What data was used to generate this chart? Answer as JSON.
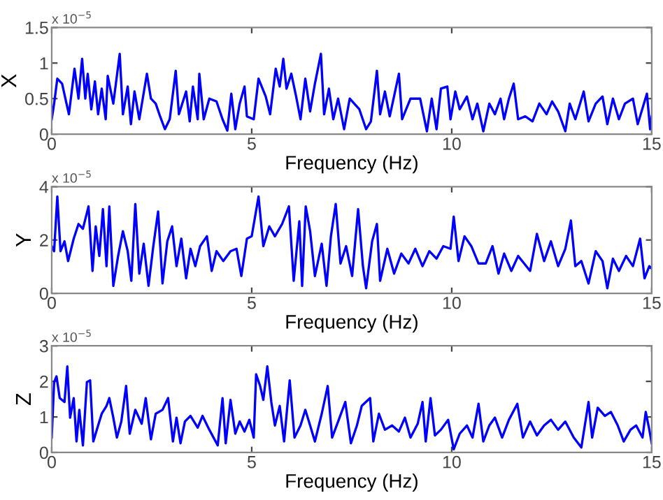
{
  "chart_data": [
    {
      "type": "line",
      "ylabel": "X",
      "xlabel": "Frequency (Hz)",
      "annotations": [
        "x 10$^{−5}$"
      ],
      "xlim": [
        0,
        15
      ],
      "xticks": [
        0,
        5,
        10,
        15
      ],
      "ylim": [
        0,
        1.5
      ],
      "yticks": [
        0,
        0.5,
        1,
        1.5
      ],
      "grid": false,
      "legend": false,
      "marker": "none",
      "line_style": "solid",
      "series": [
        {
          "color": "#0000ff",
          "x": [
            0,
            0.06,
            0.14,
            0.26,
            0.37,
            0.43,
            0.57,
            0.67,
            0.76,
            0.84,
            0.9,
            0.99,
            1.08,
            1.16,
            1.25,
            1.35,
            1.4,
            1.54,
            1.7,
            1.78,
            1.9,
            1.98,
            2.07,
            2.19,
            2.38,
            2.48,
            2.6,
            2.71,
            2.83,
            2.95,
            3.1,
            3.18,
            3.36,
            3.45,
            3.53,
            3.65,
            3.69,
            3.8,
            3.94,
            4.12,
            4.27,
            4.39,
            4.49,
            4.59,
            4.7,
            4.82,
            4.88,
            5.05,
            5.17,
            5.35,
            5.46,
            5.6,
            5.7,
            5.79,
            5.87,
            5.99,
            6.11,
            6.22,
            6.34,
            6.46,
            6.58,
            6.73,
            6.81,
            6.93,
            7.04,
            7.16,
            7.31,
            7.45,
            7.69,
            7.86,
            7.98,
            8.13,
            8.21,
            8.33,
            8.45,
            8.6,
            8.68,
            8.76,
            8.97,
            9.21,
            9.38,
            9.5,
            9.62,
            9.73,
            9.89,
            9.97,
            10.09,
            10.2,
            10.38,
            10.52,
            10.64,
            10.79,
            10.94,
            11.08,
            11.22,
            11.31,
            11.43,
            11.55,
            11.66,
            11.84,
            12.02,
            12.19,
            12.37,
            12.51,
            12.66,
            12.84,
            12.95,
            13.09,
            13.3,
            13.42,
            13.6,
            13.77,
            13.89,
            14.03,
            14.18,
            14.33,
            14.53,
            14.65,
            14.88,
            14.96,
            15
          ],
          "values": [
            0.21,
            0.43,
            0.78,
            0.71,
            0.43,
            0.28,
            0.92,
            0.5,
            1.06,
            0.5,
            0.85,
            0.35,
            0.74,
            0.28,
            0.64,
            0.21,
            0.82,
            0.43,
            1.13,
            0.28,
            0.67,
            0.14,
            0.6,
            0.21,
            0.85,
            0.5,
            0.43,
            0.25,
            0.07,
            0.21,
            0.89,
            0.28,
            0.6,
            0.18,
            0.67,
            0.21,
            0.85,
            0.21,
            0.5,
            0.46,
            0.21,
            0.05,
            0.57,
            0.07,
            0.43,
            0.67,
            0.25,
            0.21,
            0.78,
            0.53,
            0.28,
            0.92,
            0.67,
            1.06,
            0.64,
            0.85,
            0.53,
            0.21,
            0.78,
            0.32,
            0.71,
            1.13,
            0.28,
            0.64,
            0.21,
            0.5,
            0.07,
            0.5,
            0.35,
            0.07,
            0.18,
            0.89,
            0.28,
            0.6,
            0.25,
            0.64,
            0.85,
            0.21,
            0.5,
            0.5,
            0.04,
            0.5,
            0.07,
            0.64,
            0.67,
            0.21,
            0.6,
            0.35,
            0.53,
            0.21,
            0.43,
            0.04,
            0.43,
            0.28,
            0.5,
            0.21,
            0.5,
            0.71,
            0.21,
            0.25,
            0.18,
            0.43,
            0.28,
            0.46,
            0.32,
            0.04,
            0.43,
            0.21,
            0.6,
            0.18,
            0.43,
            0.53,
            0.14,
            0.5,
            0.21,
            0.43,
            0.5,
            0.14,
            0.57,
            0.07,
            0.25
          ]
        }
      ]
    },
    {
      "type": "line",
      "ylabel": "Y",
      "xlabel": "Frequency (Hz)",
      "annotations": [
        "x 10$^{−5}$"
      ],
      "xlim": [
        0,
        15
      ],
      "xticks": [
        0,
        5,
        10,
        15
      ],
      "ylim": [
        0,
        4
      ],
      "yticks": [
        0,
        2,
        4
      ],
      "grid": false,
      "legend": false,
      "marker": "none",
      "line_style": "solid",
      "series": [
        {
          "color": "#0000ff",
          "x": [
            0,
            0.06,
            0.14,
            0.22,
            0.32,
            0.41,
            0.55,
            0.67,
            0.78,
            0.92,
            1.02,
            1.1,
            1.19,
            1.28,
            1.37,
            1.44,
            1.54,
            1.66,
            1.78,
            1.9,
            1.99,
            2.09,
            2.19,
            2.3,
            2.42,
            2.54,
            2.66,
            2.77,
            2.89,
            3.01,
            3.12,
            3.24,
            3.36,
            3.47,
            3.59,
            3.71,
            3.88,
            4.0,
            4.12,
            4.29,
            4.47,
            4.62,
            4.74,
            4.88,
            5.0,
            5.17,
            5.29,
            5.44,
            5.58,
            5.76,
            5.93,
            6.05,
            6.19,
            6.26,
            6.35,
            6.46,
            6.58,
            6.75,
            6.87,
            6.98,
            7.1,
            7.22,
            7.36,
            7.51,
            7.66,
            7.78,
            7.86,
            8.01,
            8.13,
            8.21,
            8.39,
            8.56,
            8.74,
            8.92,
            9.09,
            9.27,
            9.44,
            9.62,
            9.79,
            9.97,
            10.05,
            10.17,
            10.32,
            10.49,
            10.67,
            10.85,
            11.02,
            11.17,
            11.31,
            11.49,
            11.66,
            11.81,
            11.96,
            12.13,
            12.31,
            12.48,
            12.66,
            12.84,
            12.98,
            13.09,
            13.24,
            13.42,
            13.6,
            13.77,
            13.89,
            14.03,
            14.18,
            14.36,
            14.53,
            14.71,
            14.82,
            14.94,
            15
          ],
          "values": [
            1.77,
            1.58,
            3.63,
            1.58,
            1.95,
            1.21,
            2.05,
            2.6,
            2.42,
            3.26,
            0.84,
            2.51,
            1.4,
            3.16,
            1.02,
            3.26,
            0.28,
            1.4,
            2.33,
            1.58,
            0.47,
            3.35,
            0.74,
            1.86,
            0.28,
            1.77,
            3.07,
            0.37,
            1.95,
            2.51,
            1.02,
            2.05,
            0.56,
            1.67,
            1.02,
            1.77,
            2.14,
            0.84,
            1.58,
            1.21,
            1.58,
            1.67,
            0.65,
            2.05,
            2.14,
            3.63,
            1.77,
            2.51,
            2.14,
            2.6,
            3.26,
            0.47,
            2.7,
            0.28,
            3.26,
            2.33,
            0.65,
            1.86,
            0.28,
            2.14,
            3.35,
            1.12,
            1.77,
            0.65,
            3.16,
            1.02,
            0.19,
            1.95,
            2.6,
            0.47,
            1.67,
            0.74,
            1.49,
            1.12,
            1.67,
            1.02,
            1.58,
            1.3,
            1.77,
            1.67,
            2.88,
            1.21,
            2.14,
            1.77,
            1.12,
            1.12,
            1.77,
            0.74,
            1.49,
            0.84,
            1.4,
            1.12,
            0.84,
            2.23,
            1.21,
            1.95,
            1.02,
            1.67,
            2.73,
            1.02,
            1.21,
            0.37,
            1.58,
            1.21,
            0.19,
            1.3,
            0.84,
            1.4,
            1.02,
            2.05,
            0.56,
            1.02,
            0.93
          ]
        }
      ]
    },
    {
      "type": "line",
      "ylabel": "Z",
      "xlabel": "Frequency (Hz)",
      "annotations": [
        "x 10$^{−5}$"
      ],
      "xlim": [
        0,
        15
      ],
      "xticks": [
        0,
        5,
        10,
        15
      ],
      "ylim": [
        0,
        3
      ],
      "yticks": [
        0,
        1,
        2,
        3
      ],
      "grid": false,
      "legend": false,
      "marker": "none",
      "line_style": "solid",
      "series": [
        {
          "color": "#0000ff",
          "x": [
            0,
            0.06,
            0.12,
            0.2,
            0.32,
            0.39,
            0.46,
            0.55,
            0.62,
            0.69,
            0.78,
            0.88,
            0.96,
            1.04,
            1.16,
            1.25,
            1.37,
            1.44,
            1.54,
            1.63,
            1.74,
            1.86,
            1.95,
            2.09,
            2.25,
            2.35,
            2.48,
            2.6,
            2.77,
            2.91,
            3.03,
            3.12,
            3.22,
            3.33,
            3.47,
            3.65,
            3.77,
            3.94,
            4.15,
            4.27,
            4.35,
            4.47,
            4.59,
            4.7,
            4.82,
            4.94,
            5.05,
            5.11,
            5.21,
            5.29,
            5.39,
            5.49,
            5.58,
            5.7,
            5.81,
            5.95,
            6.07,
            6.22,
            6.34,
            6.46,
            6.58,
            6.75,
            6.9,
            7.01,
            7.16,
            7.34,
            7.48,
            7.63,
            7.75,
            7.96,
            8.04,
            8.18,
            8.33,
            8.51,
            8.68,
            8.83,
            8.97,
            9.15,
            9.27,
            9.35,
            9.47,
            9.58,
            9.73,
            9.91,
            10.05,
            10.2,
            10.38,
            10.52,
            10.67,
            10.79,
            10.94,
            11.08,
            11.26,
            11.43,
            11.64,
            11.78,
            11.96,
            12.13,
            12.31,
            12.48,
            12.66,
            12.84,
            13.05,
            13.24,
            13.42,
            13.51,
            13.65,
            13.83,
            13.98,
            14.15,
            14.3,
            14.47,
            14.61,
            14.77,
            14.85,
            14.94,
            15
          ],
          "values": [
            0.42,
            1.98,
            2.14,
            1.53,
            1.42,
            2.42,
            0.98,
            1.53,
            0.31,
            1.2,
            0.2,
            1.98,
            2.03,
            0.31,
            0.76,
            1.09,
            1.31,
            1.53,
            0.98,
            0.42,
            0.87,
            1.87,
            0.53,
            1.2,
            0.81,
            1.53,
            0.37,
            1.09,
            1.2,
            1.53,
            0.31,
            0.98,
            0.26,
            0.87,
            1.03,
            0.7,
            1.03,
            0.64,
            0.2,
            1.53,
            0.26,
            1.48,
            0.53,
            0.87,
            0.59,
            0.92,
            0.42,
            2.2,
            1.87,
            1.48,
            2.42,
            1.42,
            0.76,
            1.31,
            0.31,
            2.03,
            0.42,
            0.76,
            1.2,
            0.76,
            0.31,
            1.09,
            1.87,
            0.42,
            0.87,
            1.42,
            0.26,
            0.76,
            1.31,
            1.53,
            0.31,
            1.09,
            0.64,
            0.76,
            0.59,
            0.98,
            0.42,
            0.81,
            1.42,
            0.31,
            1.53,
            0.48,
            0.64,
            0.92,
            0.09,
            0.53,
            0.76,
            0.42,
            1.37,
            0.31,
            0.76,
            0.98,
            0.42,
            0.92,
            1.37,
            0.42,
            0.87,
            0.48,
            0.76,
            0.92,
            0.64,
            0.87,
            0.42,
            0.14,
            1.42,
            0.42,
            1.26,
            1.03,
            1.14,
            0.76,
            0.31,
            0.64,
            0.76,
            0.42,
            1.14,
            0.64,
            0.26
          ]
        }
      ]
    }
  ]
}
